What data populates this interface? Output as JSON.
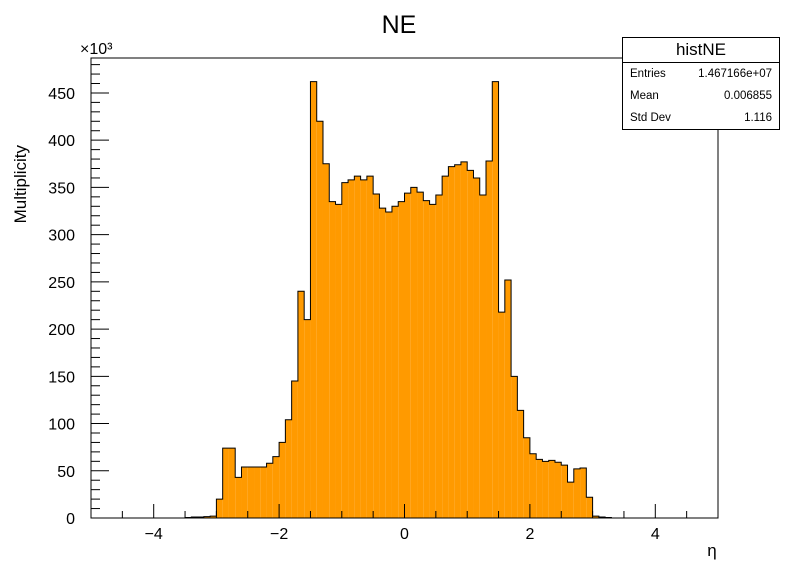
{
  "chart_data": {
    "type": "histogram",
    "title": "NE",
    "xlabel": "η",
    "ylabel": "Multiplicity",
    "y_multiplier_label": "×10³",
    "fill_color": "#ff9a00",
    "line_color": "#000000",
    "xlim": [
      -5,
      5
    ],
    "ylim": [
      0,
      487
    ],
    "bin_width": 0.1,
    "x_ticks": [
      -4,
      -2,
      0,
      2,
      4
    ],
    "x_tick_labels": [
      "−4",
      "−2",
      "0",
      "2",
      "4"
    ],
    "y_ticks": [
      0,
      50,
      100,
      150,
      200,
      250,
      300,
      350,
      400,
      450
    ],
    "y_tick_labels": [
      "0",
      "50",
      "100",
      "150",
      "200",
      "250",
      "300",
      "350",
      "400",
      "450"
    ],
    "bins": [
      [
        -3.5,
        0.5
      ],
      [
        -3.4,
        1
      ],
      [
        -3.3,
        1
      ],
      [
        -3.2,
        1.5
      ],
      [
        -3.1,
        2
      ],
      [
        -3.0,
        20
      ],
      [
        -2.9,
        74
      ],
      [
        -2.8,
        74
      ],
      [
        -2.7,
        43
      ],
      [
        -2.6,
        54
      ],
      [
        -2.5,
        54
      ],
      [
        -2.4,
        54
      ],
      [
        -2.3,
        54
      ],
      [
        -2.2,
        58
      ],
      [
        -2.1,
        65
      ],
      [
        -2.0,
        80
      ],
      [
        -1.9,
        104
      ],
      [
        -1.8,
        145
      ],
      [
        -1.7,
        240
      ],
      [
        -1.6,
        210
      ],
      [
        -1.5,
        462
      ],
      [
        -1.4,
        420
      ],
      [
        -1.3,
        375
      ],
      [
        -1.2,
        335
      ],
      [
        -1.1,
        332
      ],
      [
        -1.0,
        355
      ],
      [
        -0.9,
        358
      ],
      [
        -0.8,
        362
      ],
      [
        -0.7,
        358
      ],
      [
        -0.6,
        362
      ],
      [
        -0.5,
        343
      ],
      [
        -0.4,
        328
      ],
      [
        -0.3,
        324
      ],
      [
        -0.2,
        330
      ],
      [
        -0.1,
        335
      ],
      [
        0.0,
        344
      ],
      [
        0.1,
        350
      ],
      [
        0.2,
        345
      ],
      [
        0.3,
        336
      ],
      [
        0.4,
        332
      ],
      [
        0.5,
        342
      ],
      [
        0.6,
        362
      ],
      [
        0.7,
        372
      ],
      [
        0.8,
        374
      ],
      [
        0.9,
        377
      ],
      [
        1.0,
        368
      ],
      [
        1.1,
        360
      ],
      [
        1.2,
        342
      ],
      [
        1.3,
        378
      ],
      [
        1.4,
        462
      ],
      [
        1.5,
        218
      ],
      [
        1.6,
        252
      ],
      [
        1.7,
        150
      ],
      [
        1.8,
        114
      ],
      [
        1.9,
        85
      ],
      [
        2.0,
        68
      ],
      [
        2.1,
        62
      ],
      [
        2.2,
        60
      ],
      [
        2.3,
        61
      ],
      [
        2.4,
        59
      ],
      [
        2.5,
        56
      ],
      [
        2.6,
        38
      ],
      [
        2.7,
        52
      ],
      [
        2.8,
        53
      ],
      [
        2.9,
        22
      ],
      [
        3.0,
        2
      ],
      [
        3.1,
        1
      ],
      [
        3.2,
        0.5
      ]
    ]
  },
  "stats": {
    "name": "histNE",
    "rows": [
      {
        "label": "Entries",
        "value": "1.467166e+07"
      },
      {
        "label": "Mean",
        "value": "0.006855"
      },
      {
        "label": "Std Dev",
        "value": "1.116"
      }
    ]
  }
}
